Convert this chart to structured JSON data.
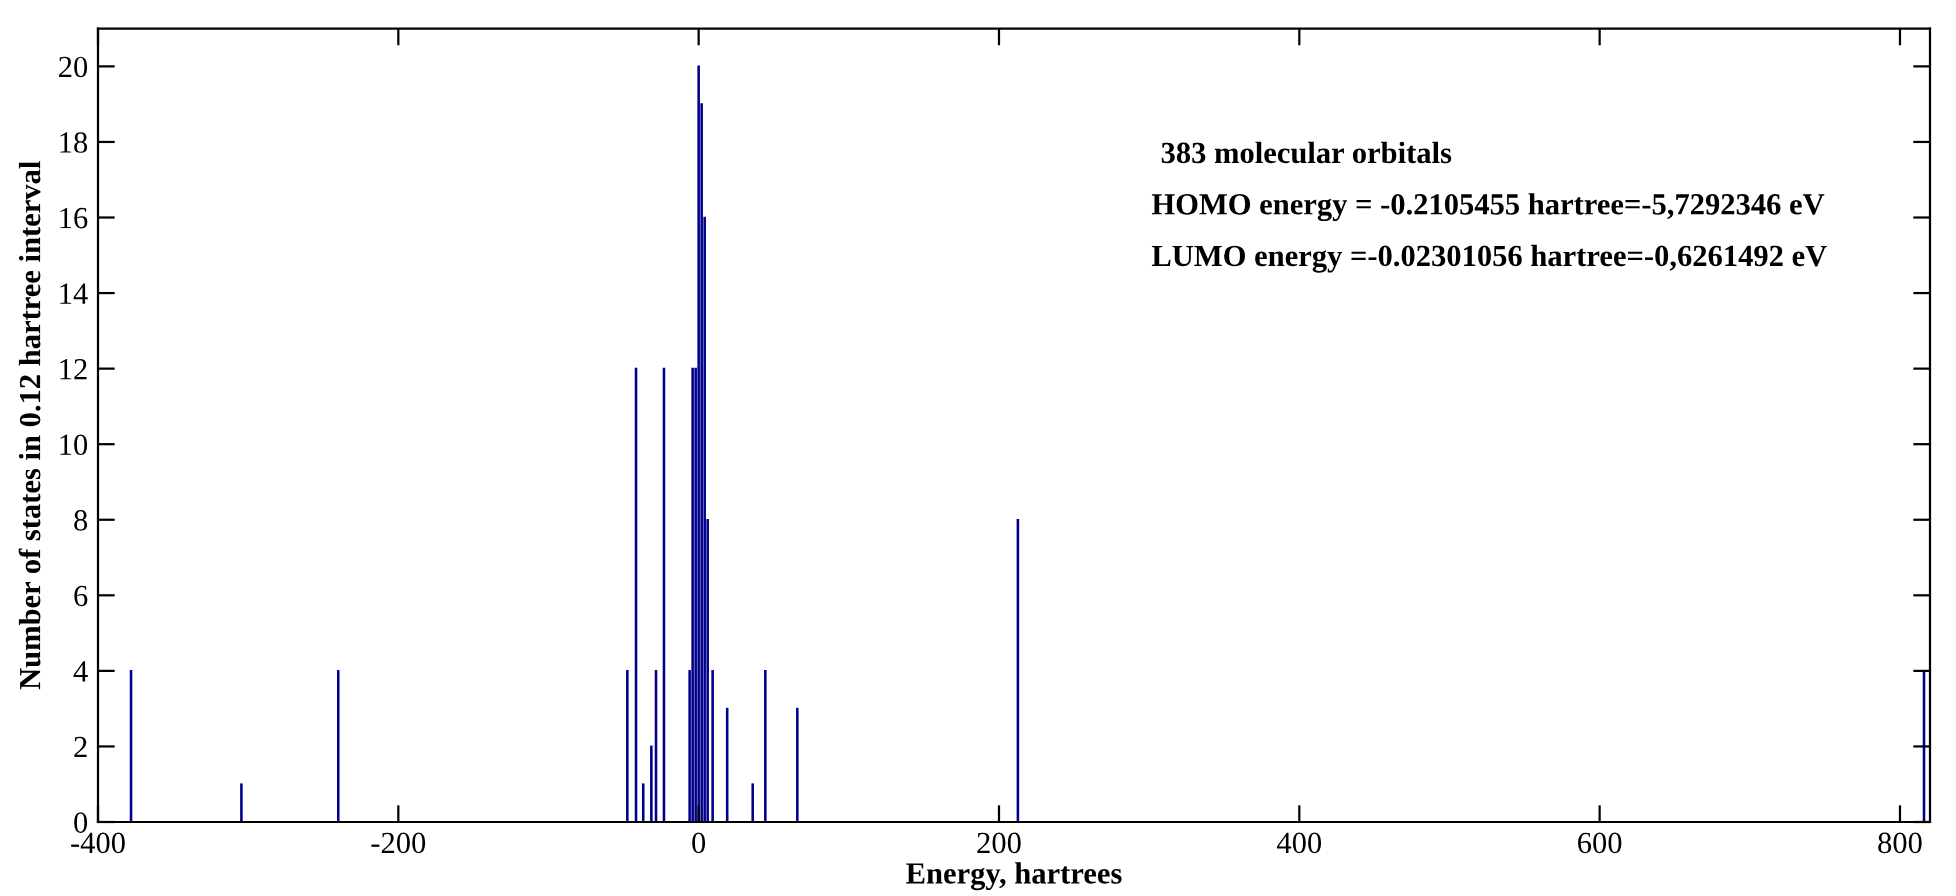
{
  "chart_data": {
    "type": "bar",
    "xlabel": "Energy, hartrees",
    "ylabel": "Number of states in 0.12 hartree interval",
    "x": [
      -378,
      -304.5,
      -240,
      -47.5,
      -41.7,
      -36.9,
      -31.5,
      -28.4,
      -23.1,
      -6,
      -4,
      -2,
      0,
      2,
      4,
      6,
      9.3,
      19,
      36,
      44.4,
      65.7,
      212.6,
      816
    ],
    "values": [
      4,
      1,
      4,
      4,
      12,
      1,
      2,
      4,
      12,
      4,
      12,
      12,
      20,
      19,
      16,
      8,
      4,
      3,
      1,
      4,
      3,
      8,
      4
    ],
    "color": "#00008b",
    "xlim": [
      -400,
      820
    ],
    "ylim": [
      0,
      21
    ],
    "xticks": [
      -400,
      -200,
      0,
      200,
      400,
      600,
      800
    ],
    "yticks": [
      0,
      2,
      4,
      6,
      8,
      10,
      12,
      14,
      16,
      18,
      20
    ],
    "grid": false,
    "legend": false,
    "annotations": [
      "383 molecular orbitals",
      "HOMO energy = -0.2105455 hartree=-5,7292346 eV",
      "LUMO energy =-0.02301056 hartree=-0,6261492 eV"
    ]
  }
}
